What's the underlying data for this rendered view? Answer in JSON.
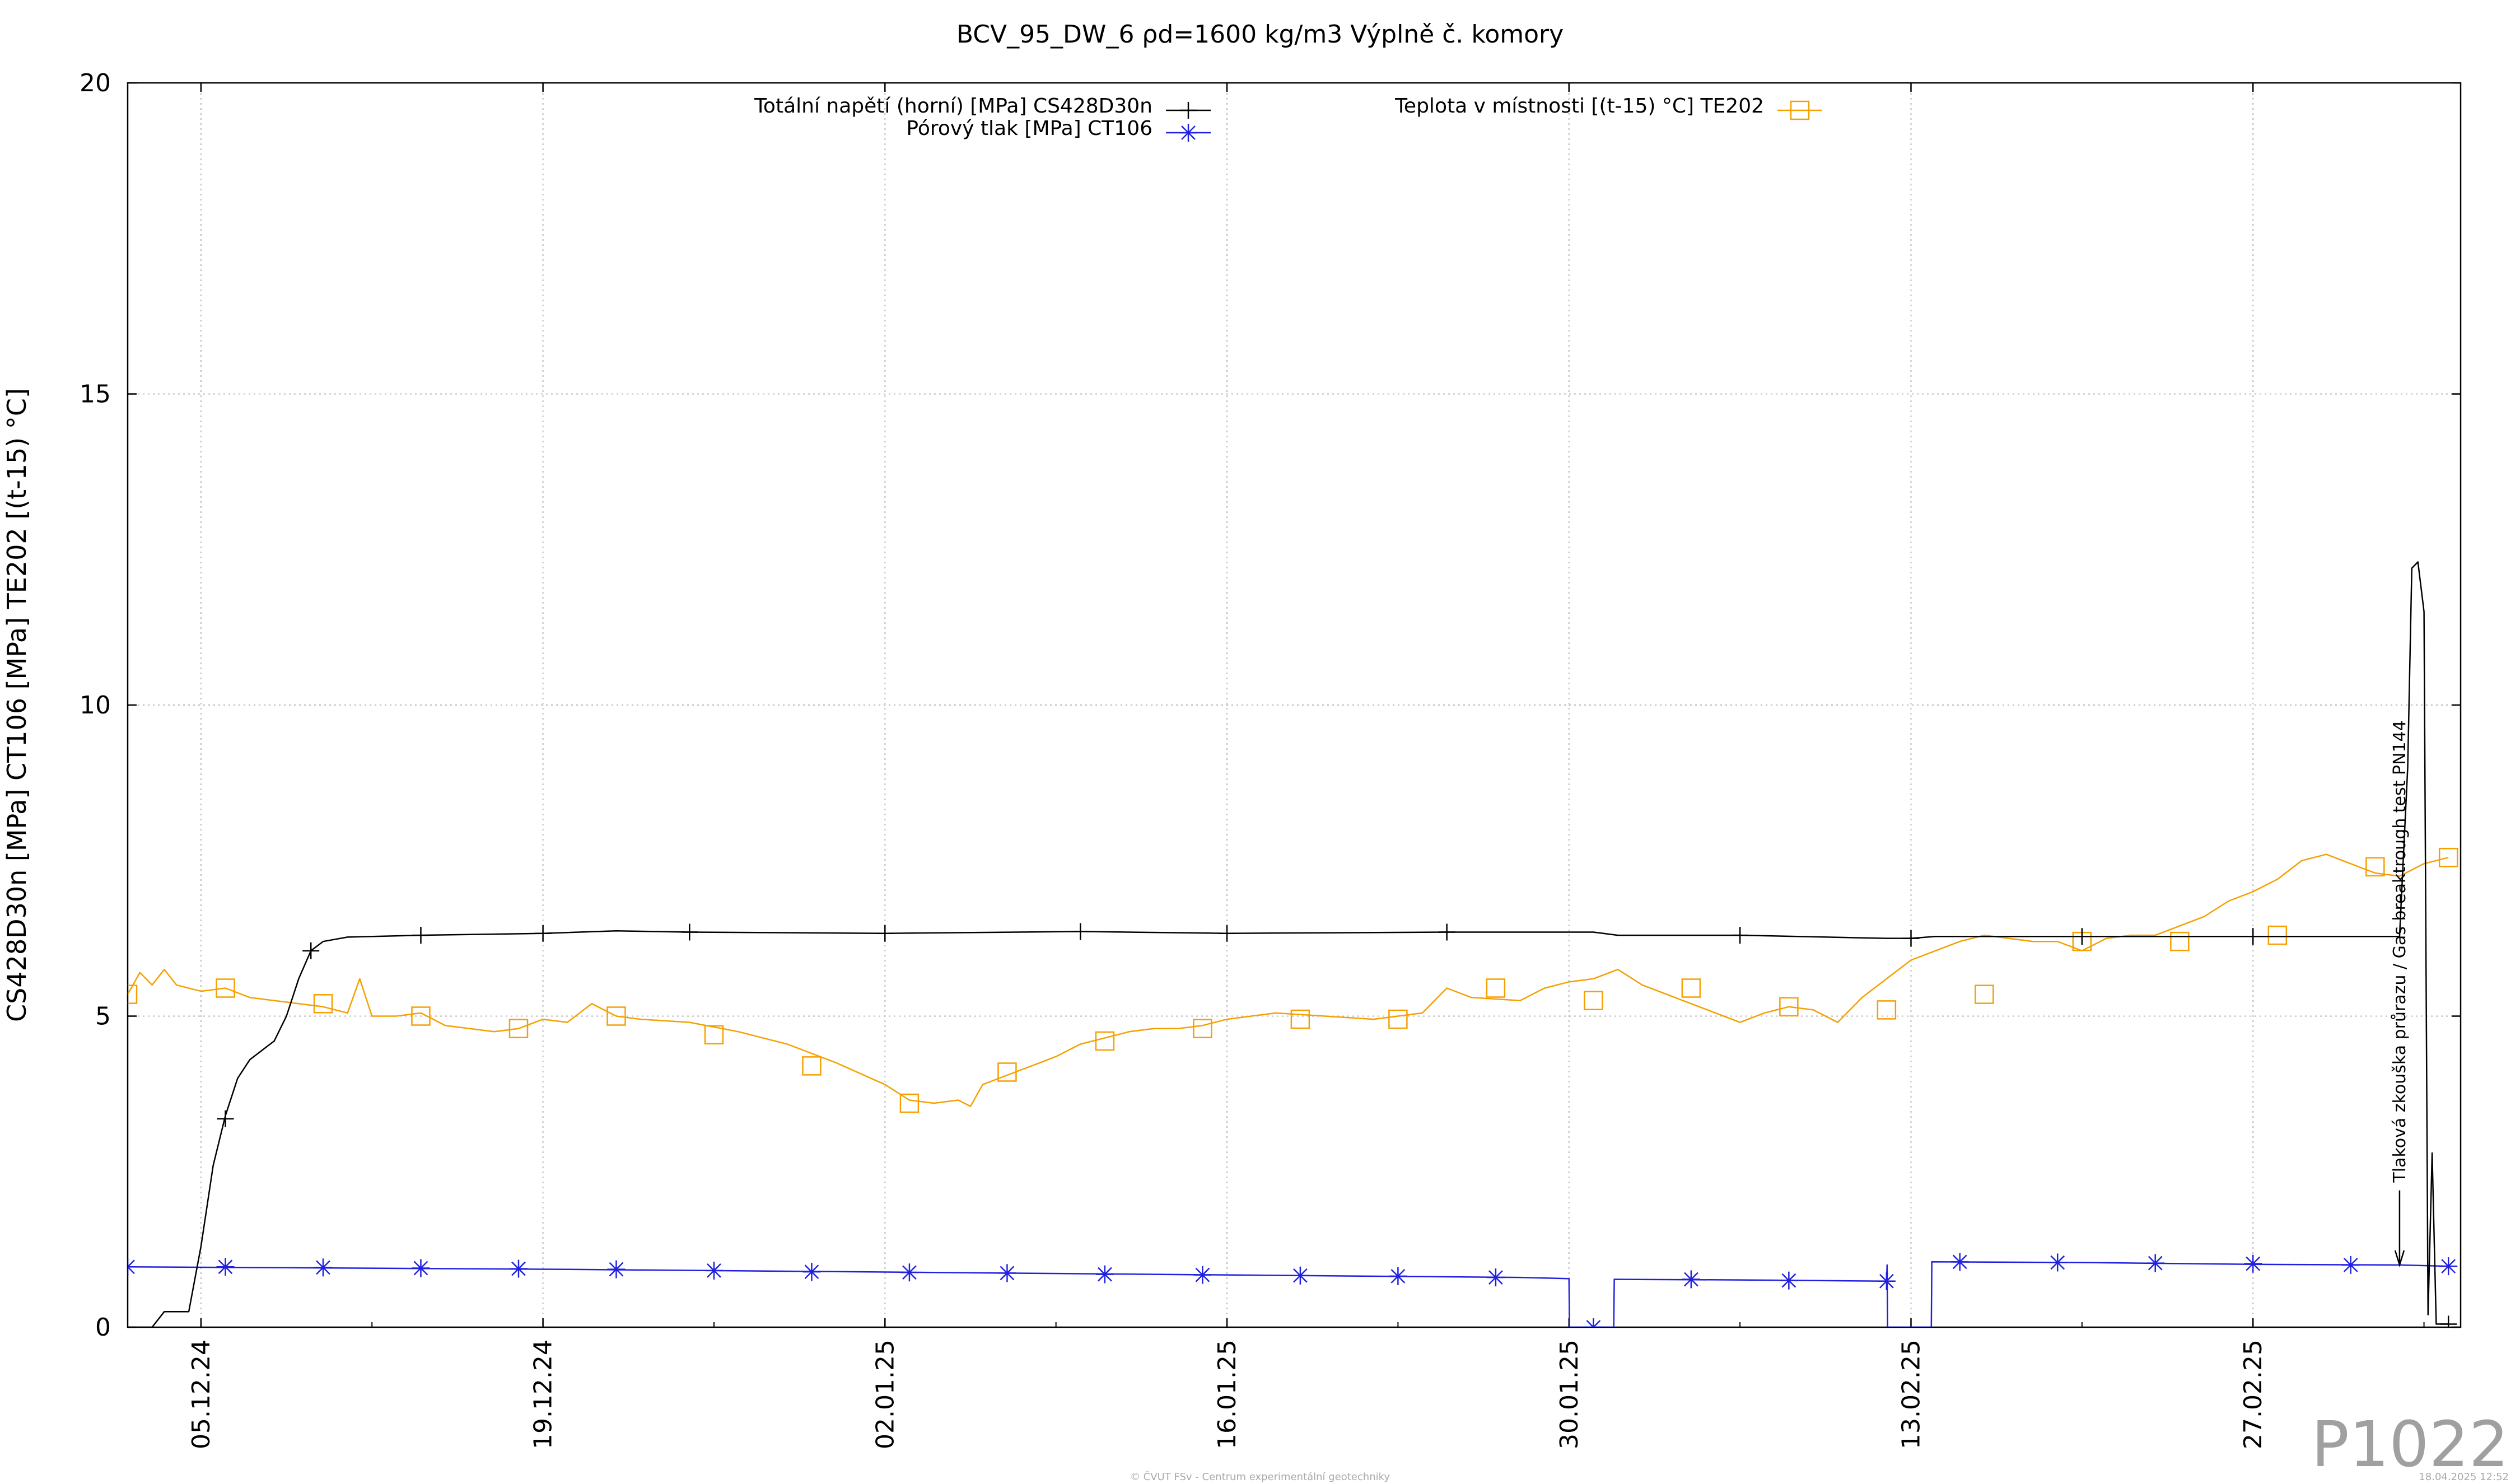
{
  "chart_data": {
    "type": "line",
    "title": "BCV_95_DW_6 ρd=1600 kg/m3 Výplně č. komory",
    "ylabel": "CS428D30n [MPa] CT106 [MPa] TE202 [(t-15) °C]",
    "xlabel": "",
    "ylim": [
      0,
      20
    ],
    "yticks": [
      "0",
      "5",
      "10",
      "15",
      "20"
    ],
    "x_is_date": true,
    "xlim": [
      "2024-12-02",
      "2025-03-07T12:00"
    ],
    "xticks": [
      {
        "date": "2024-12-05",
        "label": "05.12.24"
      },
      {
        "date": "2024-12-19",
        "label": "19.12.24"
      },
      {
        "date": "2025-01-02",
        "label": "02.01.25"
      },
      {
        "date": "2025-01-16",
        "label": "16.01.25"
      },
      {
        "date": "2025-01-30",
        "label": "30.01.25"
      },
      {
        "date": "2025-02-13",
        "label": "13.02.25"
      },
      {
        "date": "2025-02-27",
        "label": "27.02.25"
      }
    ],
    "grid": true,
    "legend_position": "top",
    "series": [
      {
        "name": "Totální napětí (horní) [MPa] CS428D30n",
        "color": "#000000",
        "marker": "plus",
        "points": [
          [
            "2024-12-02",
            0.0
          ],
          [
            "2024-12-03",
            0.0
          ],
          [
            "2024-12-03T12:00",
            0.25
          ],
          [
            "2024-12-04T12:00",
            0.25
          ],
          [
            "2024-12-05",
            1.3
          ],
          [
            "2024-12-05T12:00",
            2.6
          ],
          [
            "2024-12-06",
            3.4
          ],
          [
            "2024-12-06T12:00",
            4.0
          ],
          [
            "2024-12-07",
            4.3
          ],
          [
            "2024-12-08",
            4.6
          ],
          [
            "2024-12-08T12:00",
            5.0
          ],
          [
            "2024-12-09",
            5.6
          ],
          [
            "2024-12-09T12:00",
            6.05
          ],
          [
            "2024-12-10",
            6.2
          ],
          [
            "2024-12-11",
            6.27
          ],
          [
            "2024-12-14",
            6.3
          ],
          [
            "2024-12-19",
            6.33
          ],
          [
            "2024-12-22",
            6.37
          ],
          [
            "2024-12-25",
            6.35
          ],
          [
            "2025-01-02",
            6.33
          ],
          [
            "2025-01-10",
            6.36
          ],
          [
            "2025-01-16",
            6.33
          ],
          [
            "2025-01-25",
            6.35
          ],
          [
            "2025-01-31",
            6.35
          ],
          [
            "2025-02-01",
            6.3
          ],
          [
            "2025-02-06",
            6.3
          ],
          [
            "2025-02-12",
            6.25
          ],
          [
            "2025-02-13",
            6.25
          ],
          [
            "2025-02-14",
            6.28
          ],
          [
            "2025-02-20",
            6.28
          ],
          [
            "2025-02-27",
            6.28
          ],
          [
            "2025-03-05",
            6.28
          ],
          [
            "2025-03-05T08:00",
            9.0
          ],
          [
            "2025-03-05T12:00",
            12.2
          ],
          [
            "2025-03-05T18:00",
            12.3
          ],
          [
            "2025-03-06",
            11.5
          ],
          [
            "2025-03-06T04:00",
            0.2
          ],
          [
            "2025-03-06T08:00",
            2.8
          ],
          [
            "2025-03-06T12:00",
            0.05
          ],
          [
            "2025-03-07",
            0.05
          ]
        ],
        "marker_points": [
          [
            "2024-12-06",
            3.35
          ],
          [
            "2024-12-09T12:00",
            6.05
          ],
          [
            "2024-12-14",
            6.3
          ],
          [
            "2024-12-19",
            6.33
          ],
          [
            "2024-12-25",
            6.35
          ],
          [
            "2025-01-02",
            6.33
          ],
          [
            "2025-01-10",
            6.36
          ],
          [
            "2025-01-16",
            6.33
          ],
          [
            "2025-01-25",
            6.35
          ],
          [
            "2025-02-06",
            6.3
          ],
          [
            "2025-02-13",
            6.25
          ],
          [
            "2025-02-20",
            6.28
          ],
          [
            "2025-02-27",
            6.28
          ],
          [
            "2025-03-07",
            0.05
          ]
        ]
      },
      {
        "name": "Pórový tlak [MPa] CT106",
        "color": "#2020e0",
        "marker": "star",
        "points": [
          [
            "2024-12-02",
            0.97
          ],
          [
            "2024-12-20",
            0.93
          ],
          [
            "2025-01-10",
            0.86
          ],
          [
            "2025-01-28",
            0.8
          ],
          [
            "2025-01-30",
            0.78
          ],
          [
            "2025-01-30T00:30",
            0.0
          ],
          [
            "2025-01-31T20:00",
            0.0
          ],
          [
            "2025-01-31T20:30",
            0.77
          ],
          [
            "2025-02-06",
            0.76
          ],
          [
            "2025-02-12",
            0.74
          ],
          [
            "2025-02-12T00:30",
            1.0
          ],
          [
            "2025-02-12T01:00",
            0.0
          ],
          [
            "2025-02-13T20:00",
            0.0
          ],
          [
            "2025-02-13T20:30",
            1.05
          ],
          [
            "2025-02-20",
            1.04
          ],
          [
            "2025-02-27",
            1.01
          ],
          [
            "2025-03-05",
            1.0
          ],
          [
            "2025-03-07",
            0.98
          ]
        ],
        "marker_points": [
          [
            "2024-12-02",
            0.97
          ],
          [
            "2024-12-06",
            0.97
          ],
          [
            "2024-12-10",
            0.96
          ],
          [
            "2024-12-14",
            0.95
          ],
          [
            "2024-12-18",
            0.94
          ],
          [
            "2024-12-22",
            0.93
          ],
          [
            "2024-12-26",
            0.91
          ],
          [
            "2024-12-30",
            0.89
          ],
          [
            "2025-01-03",
            0.88
          ],
          [
            "2025-01-07",
            0.87
          ],
          [
            "2025-01-11",
            0.85
          ],
          [
            "2025-01-15",
            0.84
          ],
          [
            "2025-01-19",
            0.83
          ],
          [
            "2025-01-23",
            0.82
          ],
          [
            "2025-01-27",
            0.8
          ],
          [
            "2025-01-31",
            0.0
          ],
          [
            "2025-02-04",
            0.77
          ],
          [
            "2025-02-08",
            0.75
          ],
          [
            "2025-02-12",
            0.74
          ],
          [
            "2025-02-15",
            1.05
          ],
          [
            "2025-02-19",
            1.04
          ],
          [
            "2025-02-23",
            1.03
          ],
          [
            "2025-02-27",
            1.02
          ],
          [
            "2025-03-03",
            1.0
          ],
          [
            "2025-03-07",
            0.98
          ]
        ]
      },
      {
        "name": "Teplota v místnosti [(t-15) °C] TE202",
        "color": "#f5a000",
        "marker": "square",
        "points": [
          [
            "2024-12-02",
            5.35
          ],
          [
            "2024-12-02T12:00",
            5.7
          ],
          [
            "2024-12-03",
            5.5
          ],
          [
            "2024-12-03T12:00",
            5.75
          ],
          [
            "2024-12-04",
            5.5
          ],
          [
            "2024-12-05",
            5.4
          ],
          [
            "2024-12-06",
            5.45
          ],
          [
            "2024-12-07",
            5.3
          ],
          [
            "2024-12-08",
            5.25
          ],
          [
            "2024-12-09",
            5.2
          ],
          [
            "2024-12-10",
            5.15
          ],
          [
            "2024-12-11",
            5.05
          ],
          [
            "2024-12-11T12:00",
            5.6
          ],
          [
            "2024-12-12",
            5.0
          ],
          [
            "2024-12-13",
            5.0
          ],
          [
            "2024-12-14",
            5.05
          ],
          [
            "2024-12-15",
            4.85
          ],
          [
            "2024-12-16",
            4.8
          ],
          [
            "2024-12-17",
            4.75
          ],
          [
            "2024-12-18",
            4.8
          ],
          [
            "2024-12-19",
            4.95
          ],
          [
            "2024-12-20",
            4.9
          ],
          [
            "2024-12-21",
            5.2
          ],
          [
            "2024-12-22",
            5.0
          ],
          [
            "2024-12-23",
            4.95
          ],
          [
            "2024-12-25",
            4.9
          ],
          [
            "2024-12-27",
            4.75
          ],
          [
            "2024-12-29",
            4.55
          ],
          [
            "2024-12-31",
            4.25
          ],
          [
            "2025-01-02",
            3.9
          ],
          [
            "2025-01-03",
            3.65
          ],
          [
            "2025-01-04",
            3.6
          ],
          [
            "2025-01-05",
            3.65
          ],
          [
            "2025-01-05T12:00",
            3.55
          ],
          [
            "2025-01-06",
            3.9
          ],
          [
            "2025-01-07",
            4.05
          ],
          [
            "2025-01-08",
            4.2
          ],
          [
            "2025-01-09",
            4.35
          ],
          [
            "2025-01-10",
            4.55
          ],
          [
            "2025-01-11",
            4.65
          ],
          [
            "2025-01-12",
            4.75
          ],
          [
            "2025-01-13",
            4.8
          ],
          [
            "2025-01-14",
            4.8
          ],
          [
            "2025-01-15",
            4.85
          ],
          [
            "2025-01-16",
            4.95
          ],
          [
            "2025-01-18",
            5.05
          ],
          [
            "2025-01-20",
            5.0
          ],
          [
            "2025-01-22",
            4.95
          ],
          [
            "2025-01-24",
            5.05
          ],
          [
            "2025-01-25",
            5.45
          ],
          [
            "2025-01-26",
            5.3
          ],
          [
            "2025-01-28",
            5.25
          ],
          [
            "2025-01-29",
            5.45
          ],
          [
            "2025-01-30",
            5.55
          ],
          [
            "2025-01-31",
            5.6
          ],
          [
            "2025-02-01",
            5.75
          ],
          [
            "2025-02-02",
            5.5
          ],
          [
            "2025-02-03",
            5.35
          ],
          [
            "2025-02-04",
            5.2
          ],
          [
            "2025-02-05",
            5.05
          ],
          [
            "2025-02-06",
            4.9
          ],
          [
            "2025-02-07",
            5.05
          ],
          [
            "2025-02-08",
            5.15
          ],
          [
            "2025-02-09",
            5.1
          ],
          [
            "2025-02-10",
            4.9
          ],
          [
            "2025-02-11",
            5.3
          ],
          [
            "2025-02-12",
            5.6
          ],
          [
            "2025-02-13",
            5.9
          ],
          [
            "2025-02-14",
            6.05
          ],
          [
            "2025-02-15",
            6.2
          ],
          [
            "2025-02-16",
            6.3
          ],
          [
            "2025-02-17",
            6.25
          ],
          [
            "2025-02-18",
            6.2
          ],
          [
            "2025-02-19",
            6.2
          ],
          [
            "2025-02-20",
            6.05
          ],
          [
            "2025-02-21",
            6.25
          ],
          [
            "2025-02-22",
            6.3
          ],
          [
            "2025-02-23",
            6.3
          ],
          [
            "2025-02-24",
            6.45
          ],
          [
            "2025-02-25",
            6.6
          ],
          [
            "2025-02-26",
            6.85
          ],
          [
            "2025-02-27",
            7.0
          ],
          [
            "2025-02-28",
            7.2
          ],
          [
            "2025-03-01",
            7.5
          ],
          [
            "2025-03-02",
            7.6
          ],
          [
            "2025-03-03",
            7.45
          ],
          [
            "2025-03-04",
            7.3
          ],
          [
            "2025-03-05",
            7.25
          ],
          [
            "2025-03-06",
            7.45
          ],
          [
            "2025-03-07",
            7.55
          ]
        ],
        "marker_points": [
          [
            "2024-12-02",
            5.35
          ],
          [
            "2024-12-06",
            5.45
          ],
          [
            "2024-12-10",
            5.2
          ],
          [
            "2024-12-14",
            5.0
          ],
          [
            "2024-12-18",
            4.8
          ],
          [
            "2024-12-22",
            5.0
          ],
          [
            "2024-12-26",
            4.7
          ],
          [
            "2024-12-30",
            4.2
          ],
          [
            "2025-01-03",
            3.6
          ],
          [
            "2025-01-07",
            4.1
          ],
          [
            "2025-01-11",
            4.6
          ],
          [
            "2025-01-15",
            4.8
          ],
          [
            "2025-01-19",
            4.95
          ],
          [
            "2025-01-23",
            4.95
          ],
          [
            "2025-01-27",
            5.45
          ],
          [
            "2025-01-31",
            5.25
          ],
          [
            "2025-02-04",
            5.45
          ],
          [
            "2025-02-08",
            5.15
          ],
          [
            "2025-02-12",
            5.1
          ],
          [
            "2025-02-16",
            5.35
          ],
          [
            "2025-02-20",
            6.2
          ],
          [
            "2025-02-24",
            6.2
          ],
          [
            "2025-02-28",
            6.3
          ],
          [
            "2025-03-04",
            7.4
          ],
          [
            "2025-03-07",
            7.55
          ]
        ]
      }
    ],
    "annotations": [
      {
        "text": "Tlaková zkouška průrazu / Gas breaktrough test PN144",
        "date": "2025-03-05",
        "arrow_from": 2.2,
        "arrow_to": 1.0
      }
    ]
  },
  "watermark": "P1022",
  "footer_center": "© ČVUT FSv - Centrum experimentální geotechniky",
  "footer_right": "18.04.2025 12:52"
}
